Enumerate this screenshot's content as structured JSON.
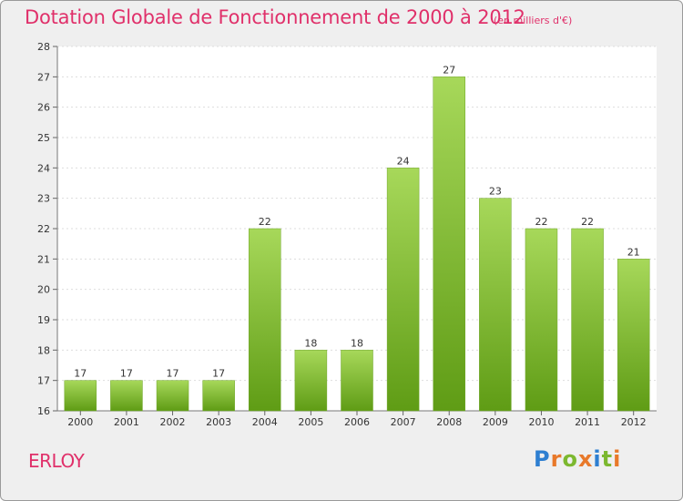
{
  "title": "Dotation Globale de Fonctionnement de 2000 à 2012",
  "subtitle": "(en milliers d'€)",
  "commune": "ERLOY",
  "brand": {
    "letters": [
      "P",
      "r",
      "o",
      "x",
      "i",
      "t",
      "i"
    ],
    "colors": [
      "#2e7fd1",
      "#e8792a",
      "#7cb82f",
      "#e8792a",
      "#2e7fd1",
      "#7cb82f",
      "#e8792a"
    ]
  },
  "colors": {
    "title": "#e0306a",
    "bar_light": "#a7d85a",
    "bar_dark": "#5f9c15",
    "plot_bg": "#ffffff",
    "grid": "#dddddd"
  },
  "chart_data": {
    "type": "bar",
    "categories": [
      "2000",
      "2001",
      "2002",
      "2003",
      "2004",
      "2005",
      "2006",
      "2007",
      "2008",
      "2009",
      "2010",
      "2011",
      "2012"
    ],
    "values": [
      17,
      17,
      17,
      17,
      22,
      18,
      18,
      24,
      27,
      23,
      22,
      22,
      21
    ],
    "data_labels": [
      "17",
      "17",
      "17",
      "17",
      "22",
      "18",
      "18",
      "24",
      "27",
      "23",
      "22",
      "22",
      "21"
    ],
    "title": "Dotation Globale de Fonctionnement de 2000 à 2012",
    "subtitle": "(en milliers d'€)",
    "xlabel": "",
    "ylabel": "",
    "ylim": [
      16,
      28
    ],
    "yticks": [
      "16",
      "17",
      "18",
      "19",
      "20",
      "21",
      "22",
      "23",
      "24",
      "25",
      "26",
      "27",
      "28"
    ],
    "grid": true,
    "legend": "none"
  }
}
